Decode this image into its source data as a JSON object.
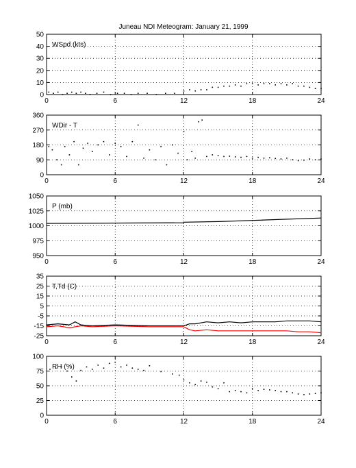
{
  "title": "Juneau NDI Meteogram:    January 21, 1999",
  "chart_data": [
    {
      "type": "scatter",
      "label": "WSpd (kts)",
      "xlim": [
        0,
        24
      ],
      "xticks": [
        0,
        6,
        12,
        18,
        24
      ],
      "ylim": [
        0,
        50
      ],
      "yticks": [
        0,
        10,
        20,
        30,
        40,
        50
      ],
      "grid": true,
      "series": [
        {
          "color": "#000000",
          "style": "dots",
          "x": [
            0.2,
            0.6,
            1.0,
            1.4,
            1.8,
            2.2,
            2.6,
            3.0,
            3.4,
            3.8,
            4.4,
            5.0,
            5.6,
            6.2,
            6.8,
            7.4,
            8.0,
            8.8,
            9.6,
            10.4,
            11.2,
            12.0,
            12.5,
            13.0,
            13.5,
            14.0,
            14.5,
            15.0,
            15.5,
            16.0,
            16.5,
            17.0,
            17.5,
            18.0,
            18.5,
            19.0,
            19.5,
            20.0,
            20.5,
            21.0,
            21.5,
            22.0,
            22.5,
            23.0,
            23.5,
            24.0
          ],
          "y": [
            2,
            1,
            2,
            0,
            1,
            2,
            1,
            2,
            1,
            0,
            1,
            2,
            0,
            1,
            1,
            0,
            1,
            1,
            0,
            1,
            1,
            3,
            4,
            3,
            4,
            4,
            6,
            6,
            7,
            7,
            8,
            7,
            9,
            9,
            8,
            9,
            9,
            8,
            9,
            8,
            9,
            7,
            7,
            6,
            5,
            5
          ]
        }
      ]
    },
    {
      "type": "scatter",
      "label": "WDir - T",
      "xlim": [
        0,
        24
      ],
      "xticks": [
        0,
        6,
        12,
        18,
        24
      ],
      "ylim": [
        0,
        360
      ],
      "yticks": [
        0,
        90,
        180,
        270,
        360
      ],
      "grid": true,
      "series": [
        {
          "color": "#000000",
          "style": "dots",
          "x": [
            0.2,
            0.5,
            0.9,
            1.3,
            1.6,
            2.0,
            2.4,
            2.8,
            3.2,
            3.6,
            4.0,
            4.5,
            5.0,
            5.5,
            6.0,
            6.5,
            7.0,
            7.5,
            8.0,
            8.5,
            9.0,
            9.5,
            10.0,
            10.5,
            11.0,
            11.5,
            12.0,
            12.3,
            12.7,
            13.0,
            13.3,
            13.6,
            14.0,
            14.5,
            15.0,
            15.5,
            16.0,
            16.5,
            17.0,
            17.5,
            18.0,
            18.5,
            19.0,
            19.5,
            20.0,
            20.5,
            21.0,
            21.5,
            22.0,
            22.5,
            23.0,
            23.5,
            24.0
          ],
          "y": [
            170,
            150,
            90,
            60,
            170,
            120,
            200,
            60,
            160,
            190,
            140,
            180,
            200,
            120,
            190,
            170,
            110,
            200,
            300,
            100,
            150,
            90,
            170,
            60,
            180,
            130,
            260,
            90,
            140,
            100,
            320,
            330,
            110,
            120,
            115,
            110,
            112,
            108,
            105,
            110,
            100,
            105,
            100,
            102,
            98,
            95,
            100,
            90,
            85,
            88,
            95,
            90,
            95
          ]
        }
      ]
    },
    {
      "type": "line",
      "label": "P (mb)",
      "xlim": [
        0,
        24
      ],
      "xticks": [
        0,
        6,
        12,
        18,
        24
      ],
      "ylim": [
        950,
        1050
      ],
      "yticks": [
        950,
        975,
        1000,
        1025,
        1050
      ],
      "grid": true,
      "series": [
        {
          "color": "#000000",
          "style": "line",
          "x": [
            0,
            12,
            12.01,
            15,
            18,
            21,
            24
          ],
          "y": [
            1004,
            1005,
            1006,
            1007,
            1009,
            1011,
            1013
          ]
        }
      ]
    },
    {
      "type": "line",
      "label": "T,Td (C)",
      "xlim": [
        0,
        24
      ],
      "xticks": [
        0,
        6,
        12,
        18,
        24
      ],
      "ylim": [
        -25,
        35
      ],
      "yticks": [
        -25,
        -15,
        -5,
        5,
        15,
        25,
        35
      ],
      "grid": true,
      "series": [
        {
          "color": "#000000",
          "style": "line",
          "x": [
            0,
            1,
            2,
            2.5,
            3,
            4,
            6,
            9,
            11,
            12,
            12.5,
            13,
            14,
            15,
            16,
            17,
            18,
            19,
            20,
            21,
            22,
            23,
            24
          ],
          "y": [
            -14,
            -13,
            -14,
            -11,
            -14,
            -15,
            -14,
            -15,
            -15,
            -15,
            -13,
            -13,
            -11,
            -12,
            -11,
            -12,
            -11,
            -11,
            -11,
            -10,
            -10,
            -10,
            -11
          ]
        },
        {
          "color": "#ff0000",
          "style": "line",
          "x": [
            0,
            1,
            2,
            3,
            4,
            6,
            9,
            11,
            12,
            12.5,
            13,
            14,
            15,
            16,
            17,
            18,
            19,
            20,
            21,
            22,
            23,
            24
          ],
          "y": [
            -16,
            -15,
            -17,
            -15,
            -16,
            -15,
            -16,
            -16,
            -16,
            -19,
            -20,
            -19,
            -20,
            -20,
            -20,
            -20,
            -20,
            -20,
            -20,
            -21,
            -21,
            -22
          ]
        }
      ]
    },
    {
      "type": "scatter",
      "label": "RH (%)",
      "xlim": [
        0,
        24
      ],
      "xticks": [
        0,
        6,
        12,
        18,
        24
      ],
      "ylim": [
        0,
        100
      ],
      "yticks": [
        0,
        25,
        50,
        75,
        100
      ],
      "grid": true,
      "series": [
        {
          "color": "#000000",
          "style": "dots",
          "x": [
            0.3,
            0.8,
            1.3,
            1.8,
            2.2,
            2.6,
            3.0,
            3.5,
            4.0,
            4.5,
            5.0,
            5.5,
            6.0,
            6.5,
            7.0,
            7.5,
            8.0,
            8.5,
            9.0,
            10.0,
            11.0,
            11.6,
            12.0,
            12.5,
            13.0,
            13.5,
            14.0,
            14.5,
            15.0,
            15.5,
            16.0,
            16.5,
            17.0,
            17.5,
            18.0,
            18.5,
            19.0,
            19.5,
            20.0,
            20.5,
            21.0,
            21.5,
            22.0,
            22.5,
            23.0,
            23.5,
            24.0
          ],
          "y": [
            78,
            80,
            82,
            75,
            65,
            58,
            76,
            82,
            78,
            85,
            80,
            88,
            90,
            82,
            85,
            80,
            78,
            76,
            84,
            74,
            70,
            68,
            60,
            55,
            52,
            58,
            56,
            48,
            45,
            55,
            40,
            42,
            40,
            38,
            45,
            42,
            44,
            43,
            42,
            40,
            40,
            38,
            36,
            35,
            36,
            37,
            38
          ]
        }
      ]
    }
  ]
}
